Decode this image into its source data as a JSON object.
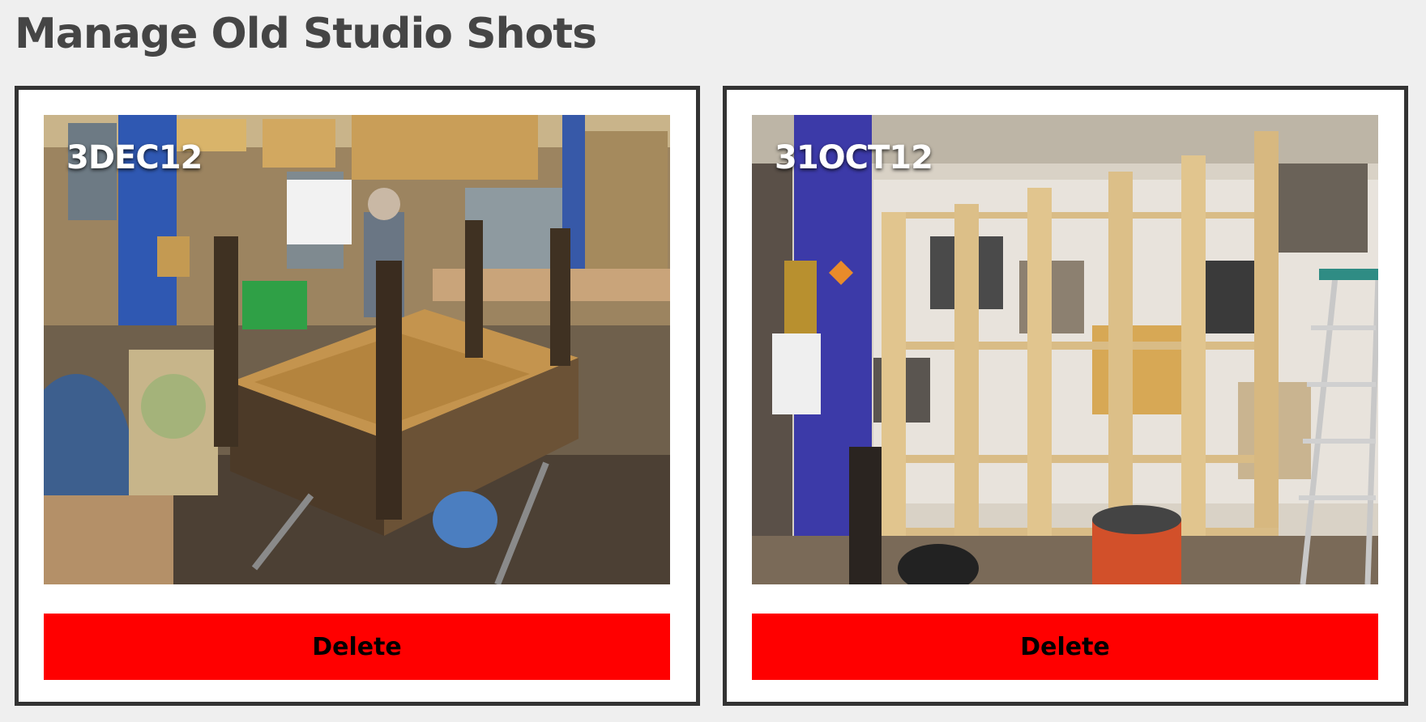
{
  "page": {
    "title": "Manage Old Studio Shots"
  },
  "shots": [
    {
      "date": "3DEC12",
      "delete_label": "Delete"
    },
    {
      "date": "31OCT12",
      "delete_label": "Delete"
    }
  ],
  "colors": {
    "background": "#efefef",
    "card_border": "#333333",
    "delete_button": "#ff0000",
    "title_text": "#454545"
  }
}
